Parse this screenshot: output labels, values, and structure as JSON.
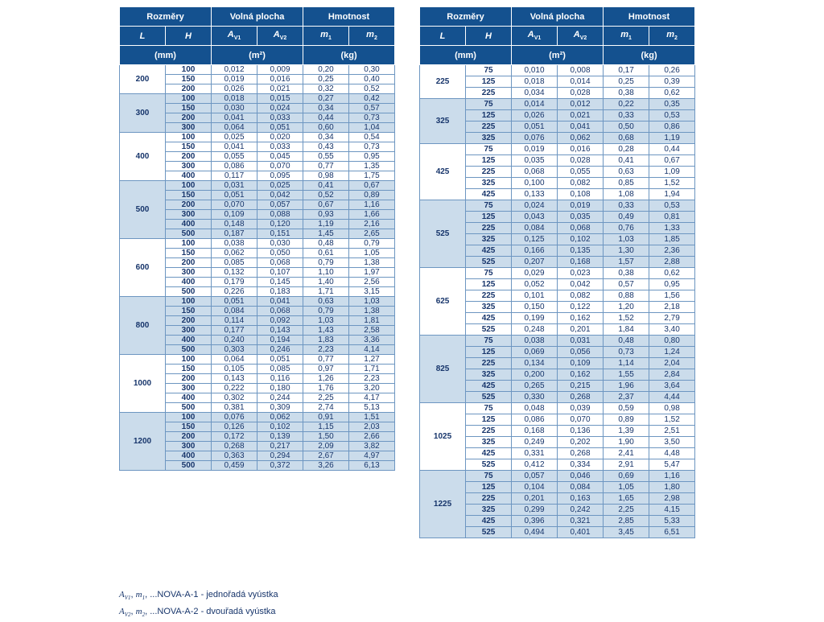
{
  "colors": {
    "header_bg": "#14518f",
    "header_text": "#ffffff",
    "group_alt_bg": "#cbdceb",
    "data_text": "#17356b",
    "grid": "#6d96c1"
  },
  "header": {
    "group_dims": "Rozměry",
    "group_area": "Volná plocha",
    "group_weight": "Hmotnost",
    "columns": [
      {
        "id": "l",
        "main": "L",
        "sub": ""
      },
      {
        "id": "h",
        "main": "H",
        "sub": ""
      },
      {
        "id": "av1",
        "main": "A",
        "sub": "V1"
      },
      {
        "id": "av2",
        "main": "A",
        "sub": "V2"
      },
      {
        "id": "m1",
        "main": "m",
        "sub": "1"
      },
      {
        "id": "m2",
        "main": "m",
        "sub": "2"
      }
    ],
    "unit_mm": "(mm)",
    "unit_m2": "(m²)",
    "unit_kg": "(kg)"
  },
  "tables": [
    {
      "id": "left",
      "groups": [
        {
          "L": "200",
          "rows": [
            [
              "100",
              "0,012",
              "0,009",
              "0,20",
              "0,30"
            ],
            [
              "150",
              "0,019",
              "0,016",
              "0,25",
              "0,40"
            ],
            [
              "200",
              "0,026",
              "0,021",
              "0,32",
              "0,52"
            ]
          ]
        },
        {
          "L": "300",
          "rows": [
            [
              "100",
              "0,018",
              "0,015",
              "0,27",
              "0,42"
            ],
            [
              "150",
              "0,030",
              "0,024",
              "0,34",
              "0,57"
            ],
            [
              "200",
              "0,041",
              "0,033",
              "0,44",
              "0,73"
            ],
            [
              "300",
              "0,064",
              "0,051",
              "0,60",
              "1,04"
            ]
          ]
        },
        {
          "L": "400",
          "rows": [
            [
              "100",
              "0,025",
              "0,020",
              "0,34",
              "0,54"
            ],
            [
              "150",
              "0,041",
              "0,033",
              "0,43",
              "0,73"
            ],
            [
              "200",
              "0,055",
              "0,045",
              "0,55",
              "0,95"
            ],
            [
              "300",
              "0,086",
              "0,070",
              "0,77",
              "1,35"
            ],
            [
              "400",
              "0,117",
              "0,095",
              "0,98",
              "1,75"
            ]
          ]
        },
        {
          "L": "500",
          "rows": [
            [
              "100",
              "0,031",
              "0,025",
              "0,41",
              "0,67"
            ],
            [
              "150",
              "0,051",
              "0,042",
              "0,52",
              "0,89"
            ],
            [
              "200",
              "0,070",
              "0,057",
              "0,67",
              "1,16"
            ],
            [
              "300",
              "0,109",
              "0,088",
              "0,93",
              "1,66"
            ],
            [
              "400",
              "0,148",
              "0,120",
              "1,19",
              "2,16"
            ],
            [
              "500",
              "0,187",
              "0,151",
              "1,45",
              "2,65"
            ]
          ]
        },
        {
          "L": "600",
          "rows": [
            [
              "100",
              "0,038",
              "0,030",
              "0,48",
              "0,79"
            ],
            [
              "150",
              "0,062",
              "0,050",
              "0,61",
              "1,05"
            ],
            [
              "200",
              "0,085",
              "0,068",
              "0,79",
              "1,38"
            ],
            [
              "300",
              "0,132",
              "0,107",
              "1,10",
              "1,97"
            ],
            [
              "400",
              "0,179",
              "0,145",
              "1,40",
              "2,56"
            ],
            [
              "500",
              "0,226",
              "0,183",
              "1,71",
              "3,15"
            ]
          ]
        },
        {
          "L": "800",
          "rows": [
            [
              "100",
              "0,051",
              "0,041",
              "0,63",
              "1,03"
            ],
            [
              "150",
              "0,084",
              "0,068",
              "0,79",
              "1,38"
            ],
            [
              "200",
              "0,114",
              "0,092",
              "1,03",
              "1,81"
            ],
            [
              "300",
              "0,177",
              "0,143",
              "1,43",
              "2,58"
            ],
            [
              "400",
              "0,240",
              "0,194",
              "1,83",
              "3,36"
            ],
            [
              "500",
              "0,303",
              "0,246",
              "2,23",
              "4,14"
            ]
          ]
        },
        {
          "L": "1000",
          "rows": [
            [
              "100",
              "0,064",
              "0,051",
              "0,77",
              "1,27"
            ],
            [
              "150",
              "0,105",
              "0,085",
              "0,97",
              "1,71"
            ],
            [
              "200",
              "0,143",
              "0,116",
              "1,26",
              "2,23"
            ],
            [
              "300",
              "0,222",
              "0,180",
              "1,76",
              "3,20"
            ],
            [
              "400",
              "0,302",
              "0,244",
              "2,25",
              "4,17"
            ],
            [
              "500",
              "0,381",
              "0,309",
              "2,74",
              "5,13"
            ]
          ]
        },
        {
          "L": "1200",
          "rows": [
            [
              "100",
              "0,076",
              "0,062",
              "0,91",
              "1,51"
            ],
            [
              "150",
              "0,126",
              "0,102",
              "1,15",
              "2,03"
            ],
            [
              "200",
              "0,172",
              "0,139",
              "1,50",
              "2,66"
            ],
            [
              "300",
              "0,268",
              "0,217",
              "2,09",
              "3,82"
            ],
            [
              "400",
              "0,363",
              "0,294",
              "2,67",
              "4,97"
            ],
            [
              "500",
              "0,459",
              "0,372",
              "3,26",
              "6,13"
            ]
          ]
        }
      ]
    },
    {
      "id": "right",
      "groups": [
        {
          "L": "225",
          "rows": [
            [
              "75",
              "0,010",
              "0,008",
              "0,17",
              "0,26"
            ],
            [
              "125",
              "0,018",
              "0,014",
              "0,25",
              "0,39"
            ],
            [
              "225",
              "0,034",
              "0,028",
              "0,38",
              "0,62"
            ]
          ]
        },
        {
          "L": "325",
          "rows": [
            [
              "75",
              "0,014",
              "0,012",
              "0,22",
              "0,35"
            ],
            [
              "125",
              "0,026",
              "0,021",
              "0,33",
              "0,53"
            ],
            [
              "225",
              "0,051",
              "0,041",
              "0,50",
              "0,86"
            ],
            [
              "325",
              "0,076",
              "0,062",
              "0,68",
              "1,19"
            ]
          ]
        },
        {
          "L": "425",
          "rows": [
            [
              "75",
              "0,019",
              "0,016",
              "0,28",
              "0,44"
            ],
            [
              "125",
              "0,035",
              "0,028",
              "0,41",
              "0,67"
            ],
            [
              "225",
              "0,068",
              "0,055",
              "0,63",
              "1,09"
            ],
            [
              "325",
              "0,100",
              "0,082",
              "0,85",
              "1,52"
            ],
            [
              "425",
              "0,133",
              "0,108",
              "1,08",
              "1,94"
            ]
          ]
        },
        {
          "L": "525",
          "rows": [
            [
              "75",
              "0,024",
              "0,019",
              "0,33",
              "0,53"
            ],
            [
              "125",
              "0,043",
              "0,035",
              "0,49",
              "0,81"
            ],
            [
              "225",
              "0,084",
              "0,068",
              "0,76",
              "1,33"
            ],
            [
              "325",
              "0,125",
              "0,102",
              "1,03",
              "1,85"
            ],
            [
              "425",
              "0,166",
              "0,135",
              "1,30",
              "2,36"
            ],
            [
              "525",
              "0,207",
              "0,168",
              "1,57",
              "2,88"
            ]
          ]
        },
        {
          "L": "625",
          "rows": [
            [
              "75",
              "0,029",
              "0,023",
              "0,38",
              "0,62"
            ],
            [
              "125",
              "0,052",
              "0,042",
              "0,57",
              "0,95"
            ],
            [
              "225",
              "0,101",
              "0,082",
              "0,88",
              "1,56"
            ],
            [
              "325",
              "0,150",
              "0,122",
              "1,20",
              "2,18"
            ],
            [
              "425",
              "0,199",
              "0,162",
              "1,52",
              "2,79"
            ],
            [
              "525",
              "0,248",
              "0,201",
              "1,84",
              "3,40"
            ]
          ]
        },
        {
          "L": "825",
          "rows": [
            [
              "75",
              "0,038",
              "0,031",
              "0,48",
              "0,80"
            ],
            [
              "125",
              "0,069",
              "0,056",
              "0,73",
              "1,24"
            ],
            [
              "225",
              "0,134",
              "0,109",
              "1,14",
              "2,04"
            ],
            [
              "325",
              "0,200",
              "0,162",
              "1,55",
              "2,84"
            ],
            [
              "425",
              "0,265",
              "0,215",
              "1,96",
              "3,64"
            ],
            [
              "525",
              "0,330",
              "0,268",
              "2,37",
              "4,44"
            ]
          ]
        },
        {
          "L": "1025",
          "rows": [
            [
              "75",
              "0,048",
              "0,039",
              "0,59",
              "0,98"
            ],
            [
              "125",
              "0,086",
              "0,070",
              "0,89",
              "1,52"
            ],
            [
              "225",
              "0,168",
              "0,136",
              "1,39",
              "2,51"
            ],
            [
              "325",
              "0,249",
              "0,202",
              "1,90",
              "3,50"
            ],
            [
              "425",
              "0,331",
              "0,268",
              "2,41",
              "4,48"
            ],
            [
              "525",
              "0,412",
              "0,334",
              "2,91",
              "5,47"
            ]
          ]
        },
        {
          "L": "1225",
          "rows": [
            [
              "75",
              "0,057",
              "0,046",
              "0,69",
              "1,16"
            ],
            [
              "125",
              "0,104",
              "0,084",
              "1,05",
              "1,80"
            ],
            [
              "225",
              "0,201",
              "0,163",
              "1,65",
              "2,98"
            ],
            [
              "325",
              "0,299",
              "0,242",
              "2,25",
              "4,15"
            ],
            [
              "425",
              "0,396",
              "0,321",
              "2,85",
              "5,33"
            ],
            [
              "525",
              "0,494",
              "0,401",
              "3,45",
              "6,51"
            ]
          ]
        }
      ]
    }
  ],
  "footnotes": [
    {
      "a": "A",
      "a_sub": "V1",
      "b": "m",
      "b_sub": "1",
      "rest": "...NOVA-A-1 - jednořadá vyústka"
    },
    {
      "a": "A",
      "a_sub": "V2",
      "b": "m",
      "b_sub": "2",
      "rest": "...NOVA-A-2 - dvouřadá vyústka"
    }
  ]
}
